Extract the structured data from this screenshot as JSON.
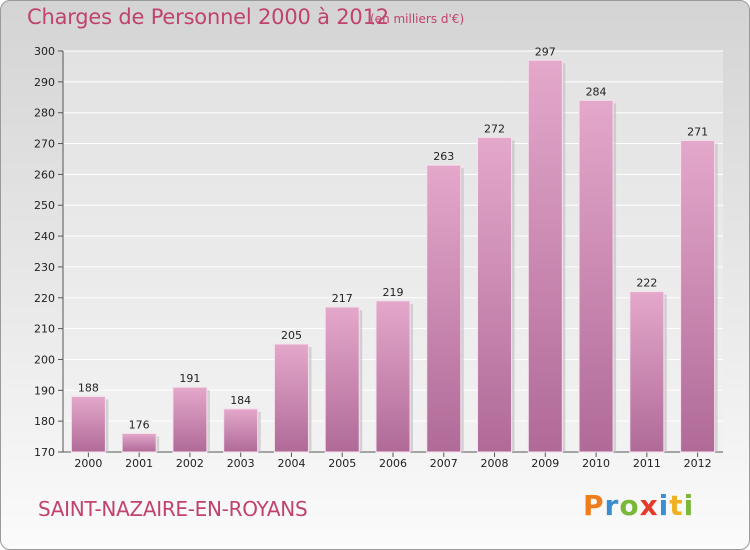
{
  "header": {
    "title": "Charges de Personnel 2000 à 2012",
    "subtitle": "(en milliers d'€)"
  },
  "footer": {
    "town": "SAINT-NAZAIRE-EN-ROYANS",
    "logo_letters": [
      "P",
      "r",
      "o",
      "x",
      "i",
      "t",
      "i"
    ],
    "logo_colors": [
      "#f07d1a",
      "#3a8fd0",
      "#7ab83a",
      "#e63a2a",
      "#3a8fd0",
      "#f0b020",
      "#7ab83a"
    ]
  },
  "chart_data": {
    "type": "bar",
    "title": "Charges de Personnel 2000 à 2012",
    "subtitle": "(en milliers d'€)",
    "categories": [
      "2000",
      "2001",
      "2002",
      "2003",
      "2004",
      "2005",
      "2006",
      "2007",
      "2008",
      "2009",
      "2010",
      "2011",
      "2012"
    ],
    "values": [
      188,
      176,
      191,
      184,
      205,
      217,
      219,
      263,
      272,
      297,
      284,
      222,
      271
    ],
    "ylim": [
      170,
      300
    ],
    "yticks": [
      170,
      180,
      190,
      200,
      210,
      220,
      230,
      240,
      250,
      260,
      270,
      280,
      290,
      300
    ],
    "grid": true,
    "bar_color": "#d98fb8",
    "data_labels": true
  }
}
